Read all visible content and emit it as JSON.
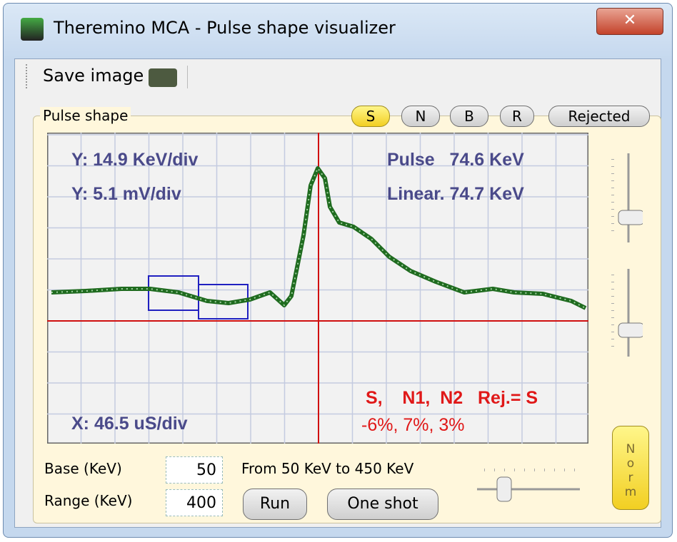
{
  "window": {
    "title": "Theremino MCA - Pulse shape visualizer"
  },
  "toolbar": {
    "save_image": "Save image"
  },
  "group": {
    "title": "Pulse shape",
    "buttons": [
      "S",
      "N",
      "B",
      "R",
      "Rejected"
    ]
  },
  "plot": {
    "y_scale_kev": "Y: 14.9 KeV/div",
    "y_scale_mv": "Y: 5.1 mV/div",
    "x_scale": "X: 46.5 uS/div",
    "pulse": "Pulse   74.6 KeV",
    "linear": "Linear. 74.7 KeV",
    "rejection_header": "S,    N1,  N2   Rej.= S",
    "rejection_values": "-6%, 7%, 3%"
  },
  "controls": {
    "base_label": "Base (KeV)",
    "base_value": "50",
    "range_label": "Range (KeV)",
    "range_value": "400",
    "range_text": "From 50 KeV to 450 KeV",
    "run": "Run",
    "one_shot": "One shot",
    "norm": "Norm"
  }
}
